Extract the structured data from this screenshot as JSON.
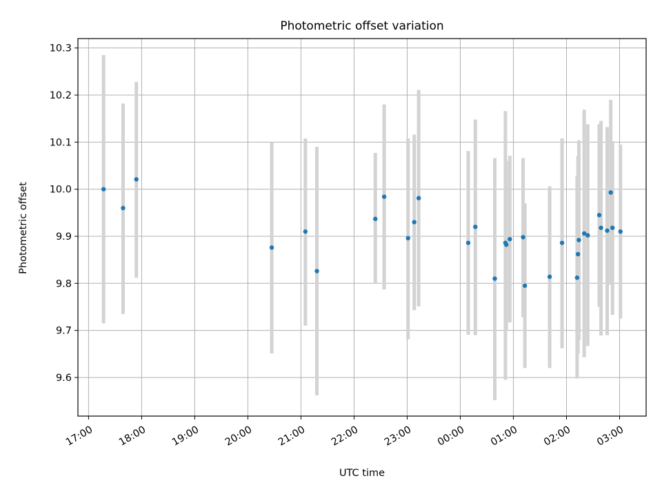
{
  "chart_data": {
    "type": "scatter",
    "title": "Photometric offset variation",
    "xlabel": "UTC time",
    "ylabel": "Photometric offset",
    "x_ticks": [
      "17:00",
      "18:00",
      "19:00",
      "20:00",
      "21:00",
      "22:00",
      "23:00",
      "00:00",
      "01:00",
      "02:00",
      "03:00"
    ],
    "y_ticks": [
      "9.6",
      "9.7",
      "9.8",
      "9.9",
      "10.0",
      "10.1",
      "10.2",
      "10.3"
    ],
    "x_range": [
      "16:48",
      "03:30"
    ],
    "ylim": [
      9.518,
      10.32
    ],
    "grid": true,
    "colors": {
      "marker": "#1f77b4",
      "errorbar": "#d3d3d3",
      "grid": "#b0b0b0"
    },
    "points": [
      {
        "x": "17:17",
        "y": 10.0,
        "ylo": 9.715,
        "yhi": 10.285
      },
      {
        "x": "17:39",
        "y": 9.96,
        "ylo": 9.735,
        "yhi": 10.182
      },
      {
        "x": "17:54",
        "y": 10.021,
        "ylo": 9.812,
        "yhi": 10.228
      },
      {
        "x": "20:27",
        "y": 9.876,
        "ylo": 9.651,
        "yhi": 10.1
      },
      {
        "x": "21:05",
        "y": 9.91,
        "ylo": 9.71,
        "yhi": 10.108
      },
      {
        "x": "21:18",
        "y": 9.826,
        "ylo": 9.562,
        "yhi": 10.09
      },
      {
        "x": "22:24",
        "y": 9.937,
        "ylo": 9.8,
        "yhi": 10.077
      },
      {
        "x": "22:34",
        "y": 9.984,
        "ylo": 9.787,
        "yhi": 10.18
      },
      {
        "x": "23:01",
        "y": 9.896,
        "ylo": 9.681,
        "yhi": 10.108
      },
      {
        "x": "23:08",
        "y": 9.93,
        "ylo": 9.743,
        "yhi": 10.116
      },
      {
        "x": "23:13",
        "y": 9.981,
        "ylo": 9.751,
        "yhi": 10.211
      },
      {
        "x": "00:09",
        "y": 9.886,
        "ylo": 9.691,
        "yhi": 10.081
      },
      {
        "x": "00:17",
        "y": 9.92,
        "ylo": 9.69,
        "yhi": 10.148
      },
      {
        "x": "00:39",
        "y": 9.81,
        "ylo": 9.552,
        "yhi": 10.066
      },
      {
        "x": "00:51",
        "y": 9.886,
        "ylo": 9.595,
        "yhi": 10.166
      },
      {
        "x": "00:52",
        "y": 9.882,
        "ylo": 9.7,
        "yhi": 10.06
      },
      {
        "x": "00:56",
        "y": 9.894,
        "ylo": 9.717,
        "yhi": 10.071
      },
      {
        "x": "01:11",
        "y": 9.898,
        "ylo": 9.728,
        "yhi": 10.066
      },
      {
        "x": "01:13",
        "y": 9.795,
        "ylo": 9.62,
        "yhi": 9.97
      },
      {
        "x": "01:41",
        "y": 9.814,
        "ylo": 9.62,
        "yhi": 10.006
      },
      {
        "x": "01:55",
        "y": 9.886,
        "ylo": 9.662,
        "yhi": 10.108
      },
      {
        "x": "02:12",
        "y": 9.812,
        "ylo": 9.598,
        "yhi": 10.028
      },
      {
        "x": "02:13",
        "y": 9.862,
        "ylo": 9.65,
        "yhi": 10.07
      },
      {
        "x": "02:14",
        "y": 9.892,
        "ylo": 9.68,
        "yhi": 10.104
      },
      {
        "x": "02:20",
        "y": 9.906,
        "ylo": 9.643,
        "yhi": 10.169
      },
      {
        "x": "02:24",
        "y": 9.902,
        "ylo": 9.667,
        "yhi": 10.138
      },
      {
        "x": "02:37",
        "y": 9.945,
        "ylo": 9.75,
        "yhi": 10.138
      },
      {
        "x": "02:39",
        "y": 9.918,
        "ylo": 9.689,
        "yhi": 10.145
      },
      {
        "x": "02:46",
        "y": 9.912,
        "ylo": 9.69,
        "yhi": 10.132
      },
      {
        "x": "02:50",
        "y": 9.993,
        "ylo": 9.797,
        "yhi": 10.19
      },
      {
        "x": "02:52",
        "y": 9.918,
        "ylo": 9.733,
        "yhi": 10.102
      },
      {
        "x": "03:01",
        "y": 9.91,
        "ylo": 9.725,
        "yhi": 10.095
      }
    ]
  }
}
